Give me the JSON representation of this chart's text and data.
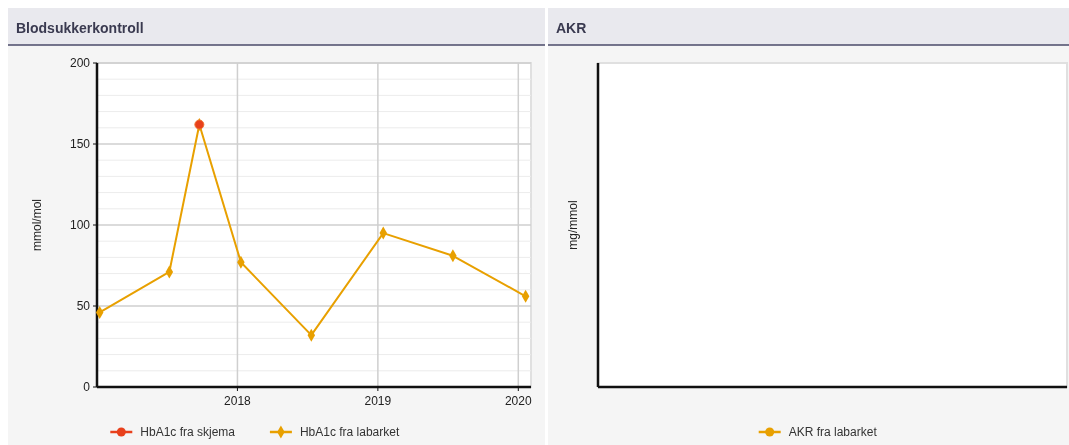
{
  "chart_data": [
    {
      "type": "line",
      "title": "Blodsukkerkontroll",
      "ylabel": "mmol/mol",
      "xlim": [
        "2017-01-01",
        "2020-02-03"
      ],
      "xticks": [
        "2018",
        "2019",
        "2020"
      ],
      "ylim": [
        0,
        200
      ],
      "yticks": [
        0,
        {
          "value": 10,
          "label": null
        },
        {
          "value": 20,
          "label": null
        },
        {
          "value": 30,
          "label": null
        },
        {
          "value": 40,
          "label": null
        },
        50,
        {
          "value": 60,
          "label": null
        },
        {
          "value": 70,
          "label": null
        },
        {
          "value": 80,
          "label": null
        },
        {
          "value": 90,
          "label": null
        },
        100,
        {
          "value": 110,
          "label": null
        },
        {
          "value": 120,
          "label": null
        },
        {
          "value": 130,
          "label": null
        },
        {
          "value": 140,
          "label": null
        },
        150,
        {
          "value": 160,
          "label": null
        },
        {
          "value": 170,
          "label": null
        },
        {
          "value": 180,
          "label": null
        },
        {
          "value": 190,
          "label": null
        },
        200
      ],
      "grid": true,
      "legend": "bottom",
      "series": [
        {
          "name": "HbA1c fra skjema",
          "type": "scatter",
          "color": "#e8401c",
          "marker": "circle",
          "x": [
            "2017-09-24"
          ],
          "values": [
            162
          ]
        },
        {
          "name": "HbA1c fra labarket",
          "color": "#e8a000",
          "marker": "diamond",
          "x": [
            "2017-01-08",
            "2017-07-08",
            "2017-09-24",
            "2018-01-10",
            "2018-07-12",
            "2019-01-15",
            "2019-07-15",
            "2020-01-20"
          ],
          "values": [
            46,
            71,
            162,
            77,
            32,
            95,
            81,
            56
          ]
        }
      ]
    },
    {
      "type": "other",
      "title": "AKR",
      "ylabel": "mg/mmol",
      "legend": "bottom",
      "series": [
        {
          "name": "AKR fra labarket",
          "color": "#e8a000",
          "marker": "circle"
        }
      ]
    }
  ]
}
